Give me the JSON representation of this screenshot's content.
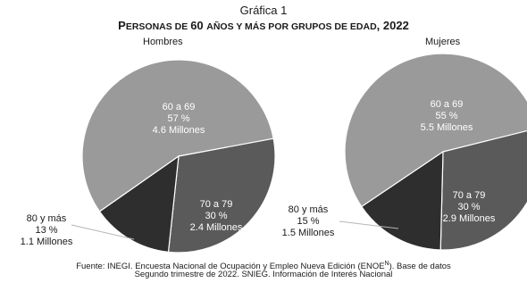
{
  "chart_number": "Gráfica 1",
  "title_parts": [
    {
      "text": "P",
      "sc": false
    },
    {
      "text": "ERSONAS DE ",
      "sc": true
    },
    {
      "text": "60 ",
      "sc": false
    },
    {
      "text": "AÑOS Y MÁS POR GRUPOS DE EDAD",
      "sc": true
    },
    {
      "text": ", 2022",
      "sc": false
    }
  ],
  "source_line1": "Fuente: INEGI. Encuesta Nacional de Ocupación y Empleo Nueva Edición (ENOE",
  "source_sup": "N",
  "source_line1_end": "). Base de datos",
  "source_line2": "Segundo trimestre de 2022. SNIEG. Información de Interés Nacional",
  "colors": {
    "slice_60_69": "#9a9a9a",
    "slice_70_79": "#5a5a5a",
    "slice_80_mas": "#2e2e2e",
    "edge": "#ffffff"
  },
  "chart_data": [
    {
      "type": "pie",
      "title": "Hombres",
      "slices": [
        {
          "label": "60 a 69",
          "percent_text": "57 %",
          "value": 4.6,
          "value_text": "4.6 Millones"
        },
        {
          "label": "70 a 79",
          "percent_text": "30 %",
          "value": 2.4,
          "value_text": "2.4 Millones"
        },
        {
          "label": "80 y más",
          "percent_text": "13 %",
          "value": 1.1,
          "value_text": "1.1 Millones"
        }
      ]
    },
    {
      "type": "pie",
      "title": "Mujeres",
      "slices": [
        {
          "label": "60 a 69",
          "percent_text": "55 %",
          "value": 5.5,
          "value_text": "5.5 Millones"
        },
        {
          "label": "70 a 79",
          "percent_text": "30 %",
          "value": 2.9,
          "value_text": "2.9 Millones"
        },
        {
          "label": "80 y más",
          "percent_text": "15 %",
          "value": 1.5,
          "value_text": "1.5 Millones"
        }
      ]
    }
  ]
}
